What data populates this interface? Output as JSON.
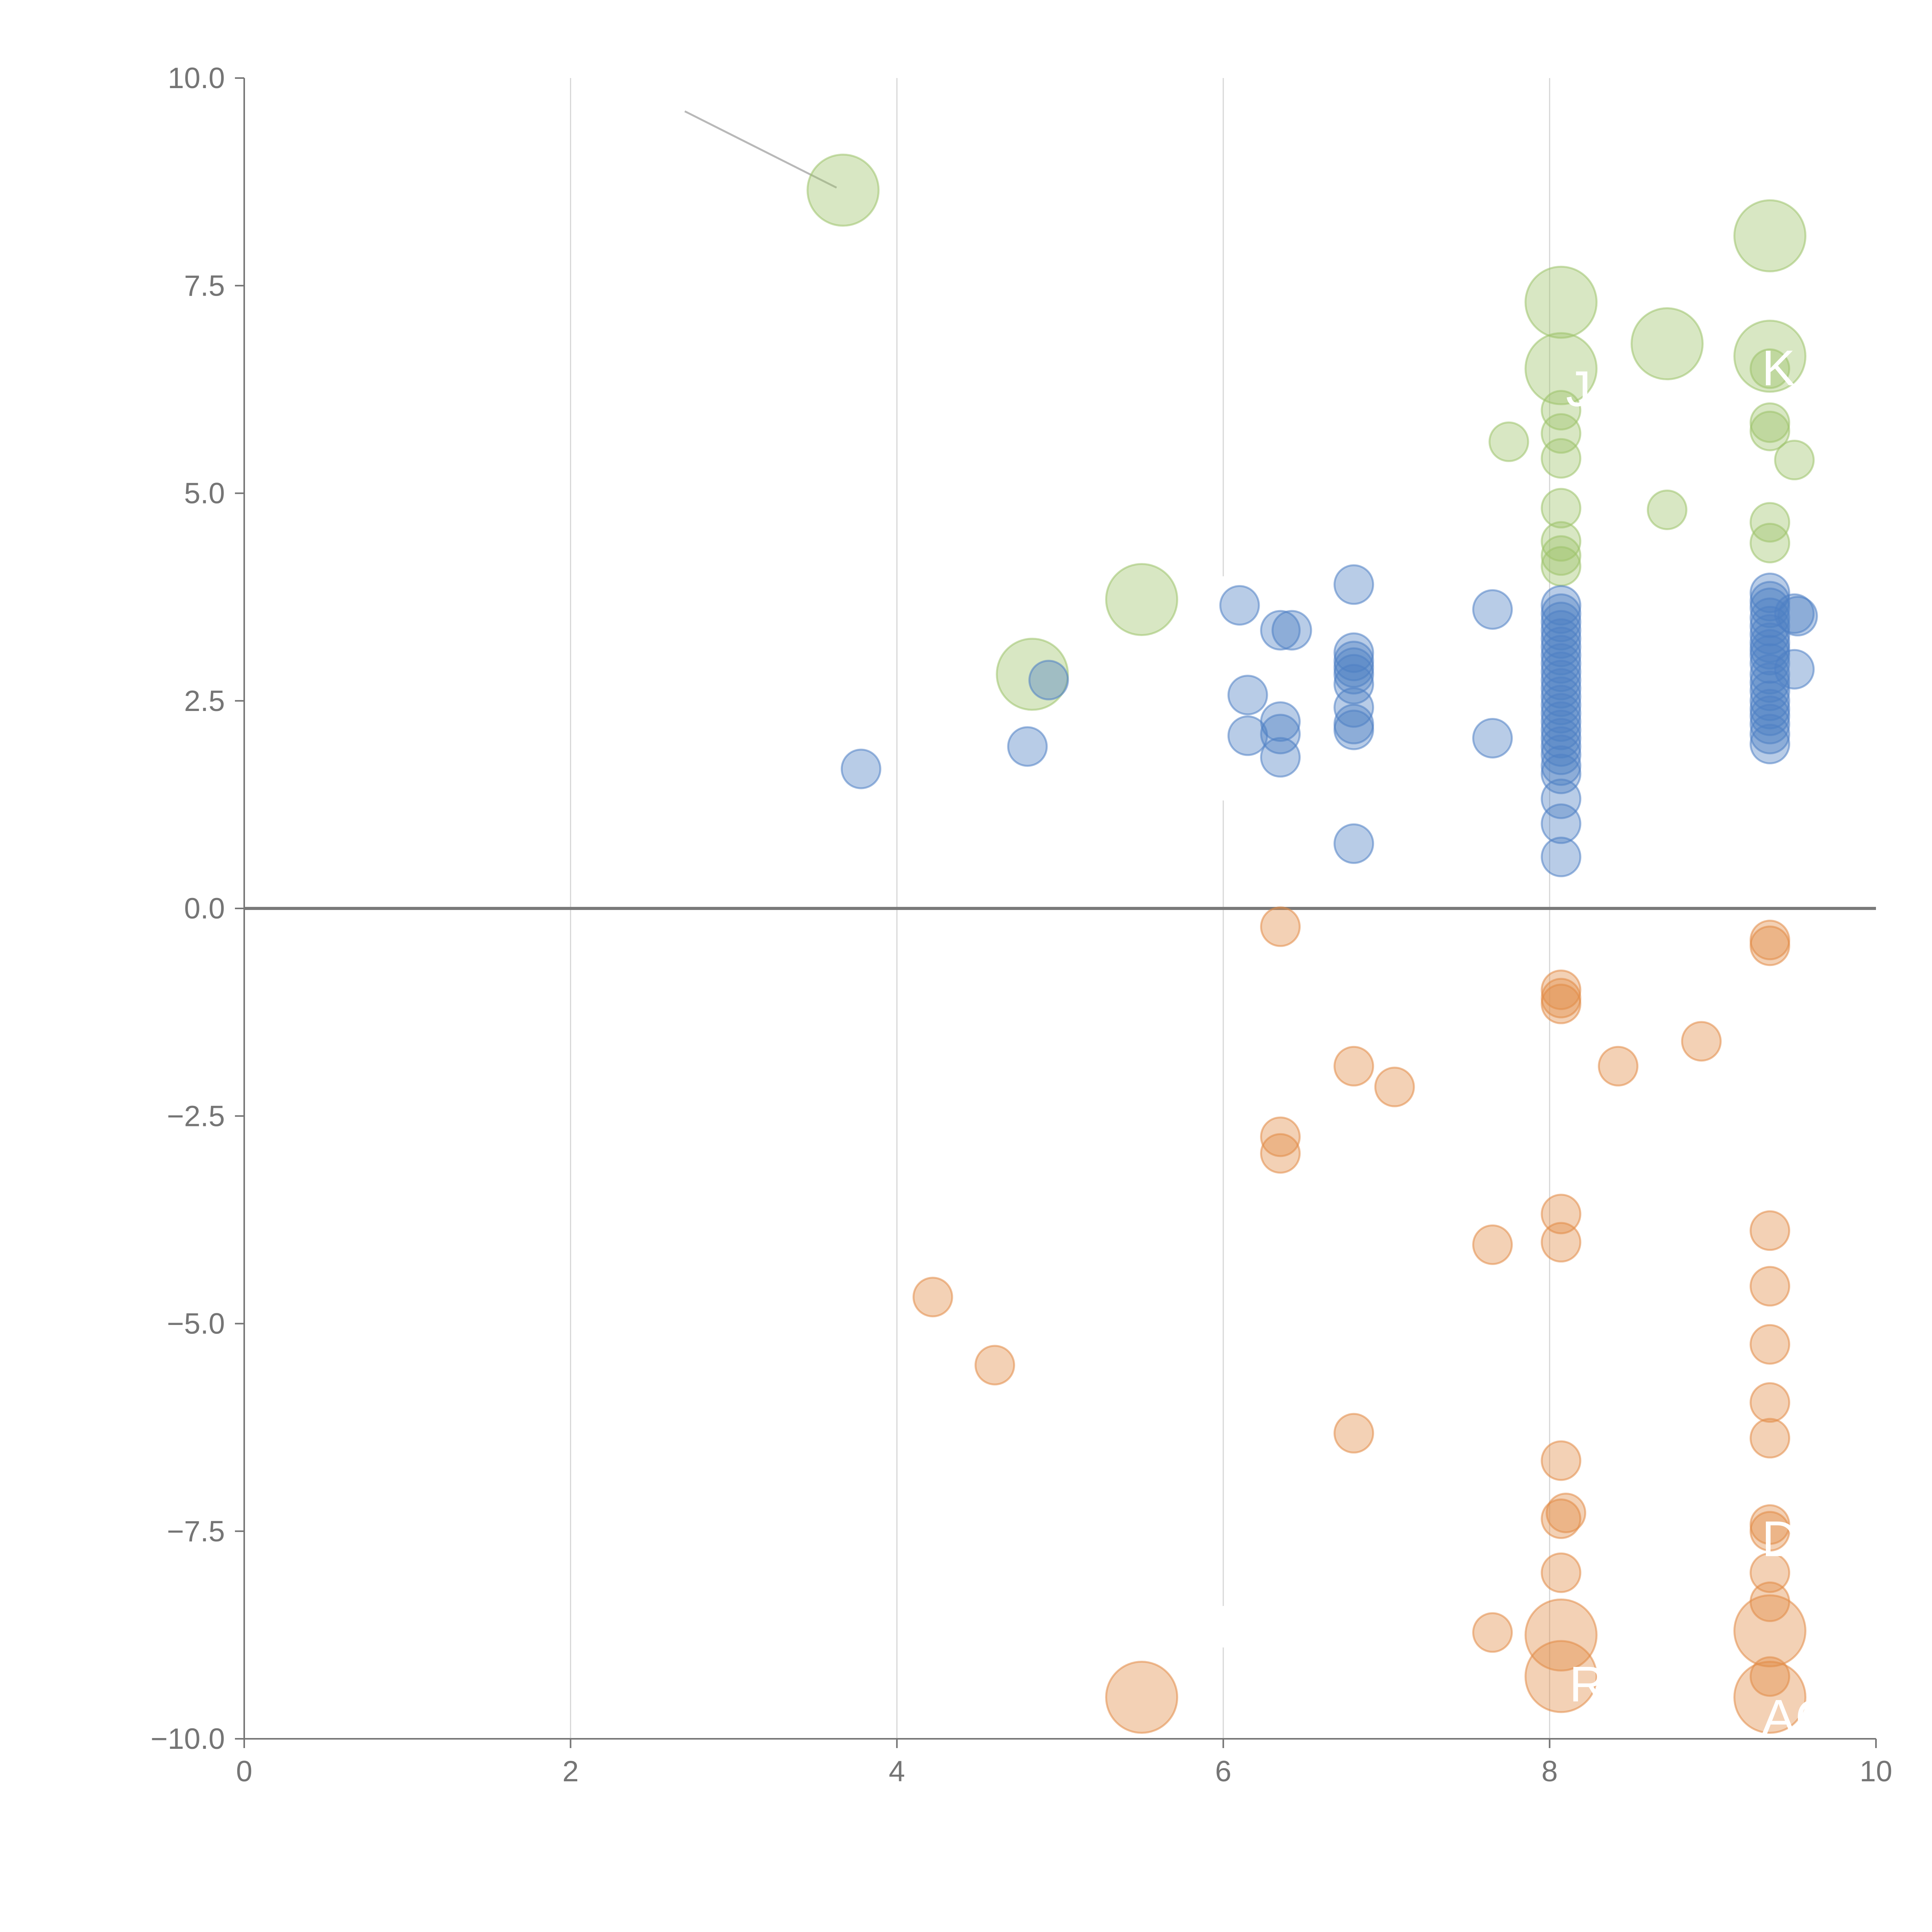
{
  "chart_data": {
    "type": "scatter",
    "title": "",
    "xlabel": "",
    "ylabel": "",
    "xlim": [
      0,
      10
    ],
    "ylim": [
      -10,
      10
    ],
    "x_ticks": [
      "0",
      "2",
      "4",
      "6",
      "8",
      "10"
    ],
    "y_ticks": [
      "10.0",
      "7.5",
      "5.0",
      "2.5",
      "0.0",
      "−2.5",
      "−5.0",
      "−7.5",
      "−10.0"
    ],
    "grid": "vertical",
    "reference_line_y": 0,
    "colors": {
      "blue": "#4e7fc4",
      "green": "#9dc26a",
      "orange": "#e28b45"
    },
    "series": [
      {
        "name": "green",
        "color": "#9dc26a",
        "points": [
          {
            "x": 3.67,
            "y": 8.65,
            "s": "xl"
          },
          {
            "x": 9.35,
            "y": 8.1,
            "s": "l"
          },
          {
            "x": 8.07,
            "y": 7.3,
            "s": "l"
          },
          {
            "x": 8.72,
            "y": 6.8,
            "s": "l"
          },
          {
            "x": 9.35,
            "y": 6.65,
            "s": "l"
          },
          {
            "x": 8.07,
            "y": 6.5,
            "s": "l"
          },
          {
            "x": 5.5,
            "y": 3.72,
            "s": "l"
          },
          {
            "x": 4.83,
            "y": 2.82,
            "s": "l"
          },
          {
            "x": 9.35,
            "y": 6.5,
            "s": "s"
          },
          {
            "x": 8.07,
            "y": 6.0,
            "s": "s"
          },
          {
            "x": 9.35,
            "y": 5.85,
            "s": "s"
          },
          {
            "x": 9.35,
            "y": 5.75,
            "s": "s"
          },
          {
            "x": 8.07,
            "y": 5.72,
            "s": "s"
          },
          {
            "x": 7.75,
            "y": 5.62,
            "s": "s"
          },
          {
            "x": 8.07,
            "y": 5.42,
            "s": "s"
          },
          {
            "x": 9.5,
            "y": 5.4,
            "s": "s"
          },
          {
            "x": 8.07,
            "y": 4.82,
            "s": "s"
          },
          {
            "x": 8.72,
            "y": 4.8,
            "s": "s"
          },
          {
            "x": 9.35,
            "y": 4.65,
            "s": "s"
          },
          {
            "x": 8.07,
            "y": 4.42,
            "s": "s"
          },
          {
            "x": 9.35,
            "y": 4.4,
            "s": "s"
          },
          {
            "x": 8.07,
            "y": 4.25,
            "s": "s"
          },
          {
            "x": 8.07,
            "y": 4.12,
            "s": "s"
          }
        ]
      },
      {
        "name": "blue",
        "color": "#4e7fc4",
        "points": [
          {
            "x": 6.8,
            "y": 3.9
          },
          {
            "x": 6.1,
            "y": 3.65
          },
          {
            "x": 7.65,
            "y": 3.6
          },
          {
            "x": 6.35,
            "y": 3.35
          },
          {
            "x": 6.42,
            "y": 3.35
          },
          {
            "x": 6.8,
            "y": 3.08
          },
          {
            "x": 6.8,
            "y": 2.98
          },
          {
            "x": 6.8,
            "y": 2.9
          },
          {
            "x": 6.8,
            "y": 2.82
          },
          {
            "x": 6.8,
            "y": 2.7
          },
          {
            "x": 4.93,
            "y": 2.75
          },
          {
            "x": 6.15,
            "y": 2.57
          },
          {
            "x": 6.8,
            "y": 2.42
          },
          {
            "x": 6.35,
            "y": 2.25
          },
          {
            "x": 6.8,
            "y": 2.22
          },
          {
            "x": 6.8,
            "y": 2.15
          },
          {
            "x": 6.15,
            "y": 2.08
          },
          {
            "x": 6.35,
            "y": 2.1
          },
          {
            "x": 7.65,
            "y": 2.05
          },
          {
            "x": 4.8,
            "y": 1.95
          },
          {
            "x": 6.35,
            "y": 1.82
          },
          {
            "x": 3.78,
            "y": 1.68
          },
          {
            "x": 6.8,
            "y": 0.78
          },
          {
            "x": 8.07,
            "y": 3.65
          },
          {
            "x": 8.07,
            "y": 3.55
          },
          {
            "x": 8.07,
            "y": 3.45
          },
          {
            "x": 8.07,
            "y": 3.35
          },
          {
            "x": 8.07,
            "y": 3.25
          },
          {
            "x": 8.07,
            "y": 3.15
          },
          {
            "x": 8.07,
            "y": 3.05
          },
          {
            "x": 8.07,
            "y": 2.95
          },
          {
            "x": 8.07,
            "y": 2.85
          },
          {
            "x": 8.07,
            "y": 2.75
          },
          {
            "x": 8.07,
            "y": 2.65
          },
          {
            "x": 8.07,
            "y": 2.55
          },
          {
            "x": 8.07,
            "y": 2.45
          },
          {
            "x": 8.07,
            "y": 2.35
          },
          {
            "x": 8.07,
            "y": 2.25
          },
          {
            "x": 8.07,
            "y": 2.15
          },
          {
            "x": 8.07,
            "y": 2.05
          },
          {
            "x": 8.07,
            "y": 1.95
          },
          {
            "x": 8.07,
            "y": 1.85
          },
          {
            "x": 8.07,
            "y": 1.72
          },
          {
            "x": 8.07,
            "y": 1.62
          },
          {
            "x": 8.07,
            "y": 1.32
          },
          {
            "x": 8.07,
            "y": 1.02
          },
          {
            "x": 8.07,
            "y": 0.62
          },
          {
            "x": 9.35,
            "y": 3.8
          },
          {
            "x": 9.35,
            "y": 3.7
          },
          {
            "x": 9.35,
            "y": 3.62
          },
          {
            "x": 9.35,
            "y": 3.5
          },
          {
            "x": 9.35,
            "y": 3.4
          },
          {
            "x": 9.35,
            "y": 3.3
          },
          {
            "x": 9.35,
            "y": 3.2
          },
          {
            "x": 9.35,
            "y": 3.12
          },
          {
            "x": 9.35,
            "y": 3.05
          },
          {
            "x": 9.35,
            "y": 2.95
          },
          {
            "x": 9.35,
            "y": 2.82
          },
          {
            "x": 9.35,
            "y": 2.72
          },
          {
            "x": 9.35,
            "y": 2.62
          },
          {
            "x": 9.35,
            "y": 2.5
          },
          {
            "x": 9.35,
            "y": 2.4
          },
          {
            "x": 9.35,
            "y": 2.32
          },
          {
            "x": 9.35,
            "y": 2.22
          },
          {
            "x": 9.35,
            "y": 2.1
          },
          {
            "x": 9.35,
            "y": 1.98
          },
          {
            "x": 9.5,
            "y": 3.55
          },
          {
            "x": 9.52,
            "y": 3.52
          },
          {
            "x": 9.5,
            "y": 2.88
          }
        ]
      },
      {
        "name": "orange",
        "color": "#e28b45",
        "points": [
          {
            "x": 6.35,
            "y": -0.22
          },
          {
            "x": 9.35,
            "y": -0.38
          },
          {
            "x": 9.35,
            "y": -0.45
          },
          {
            "x": 8.07,
            "y": -0.98
          },
          {
            "x": 8.07,
            "y": -1.08
          },
          {
            "x": 8.07,
            "y": -1.15
          },
          {
            "x": 8.93,
            "y": -1.6
          },
          {
            "x": 6.8,
            "y": -1.9
          },
          {
            "x": 8.42,
            "y": -1.9
          },
          {
            "x": 7.05,
            "y": -2.15
          },
          {
            "x": 6.35,
            "y": -2.75
          },
          {
            "x": 6.35,
            "y": -2.95
          },
          {
            "x": 8.07,
            "y": -3.68
          },
          {
            "x": 9.35,
            "y": -3.88
          },
          {
            "x": 8.07,
            "y": -4.02
          },
          {
            "x": 7.65,
            "y": -4.05
          },
          {
            "x": 9.35,
            "y": -4.55
          },
          {
            "x": 4.22,
            "y": -4.68
          },
          {
            "x": 9.35,
            "y": -5.25
          },
          {
            "x": 4.6,
            "y": -5.5
          },
          {
            "x": 9.35,
            "y": -5.95
          },
          {
            "x": 6.8,
            "y": -6.32
          },
          {
            "x": 9.35,
            "y": -6.38
          },
          {
            "x": 8.07,
            "y": -6.65
          },
          {
            "x": 8.1,
            "y": -7.28
          },
          {
            "x": 8.07,
            "y": -7.35
          },
          {
            "x": 9.35,
            "y": -7.42
          },
          {
            "x": 9.35,
            "y": -7.5
          },
          {
            "x": 9.35,
            "y": -8.0
          },
          {
            "x": 8.07,
            "y": -8.0
          },
          {
            "x": 9.35,
            "y": -8.35
          },
          {
            "x": 7.65,
            "y": -8.72
          },
          {
            "x": 9.35,
            "y": -9.25
          },
          {
            "x": 8.07,
            "y": -8.75,
            "s": "l"
          },
          {
            "x": 9.35,
            "y": -8.7,
            "s": "l"
          },
          {
            "x": 8.07,
            "y": -9.25,
            "s": "l"
          },
          {
            "x": 9.35,
            "y": -9.5,
            "s": "l"
          },
          {
            "x": 5.5,
            "y": -9.5,
            "s": "l"
          }
        ]
      }
    ],
    "point_labels": [
      {
        "text": "J",
        "x": 8.1,
        "y": 6.05
      },
      {
        "text": "K",
        "x": 9.3,
        "y": 6.3
      },
      {
        "text": "D",
        "x": 9.3,
        "y": -7.8
      },
      {
        "text": "R",
        "x": 8.12,
        "y": -9.55
      },
      {
        "text": "AC",
        "x": 9.3,
        "y": -9.95
      }
    ]
  }
}
